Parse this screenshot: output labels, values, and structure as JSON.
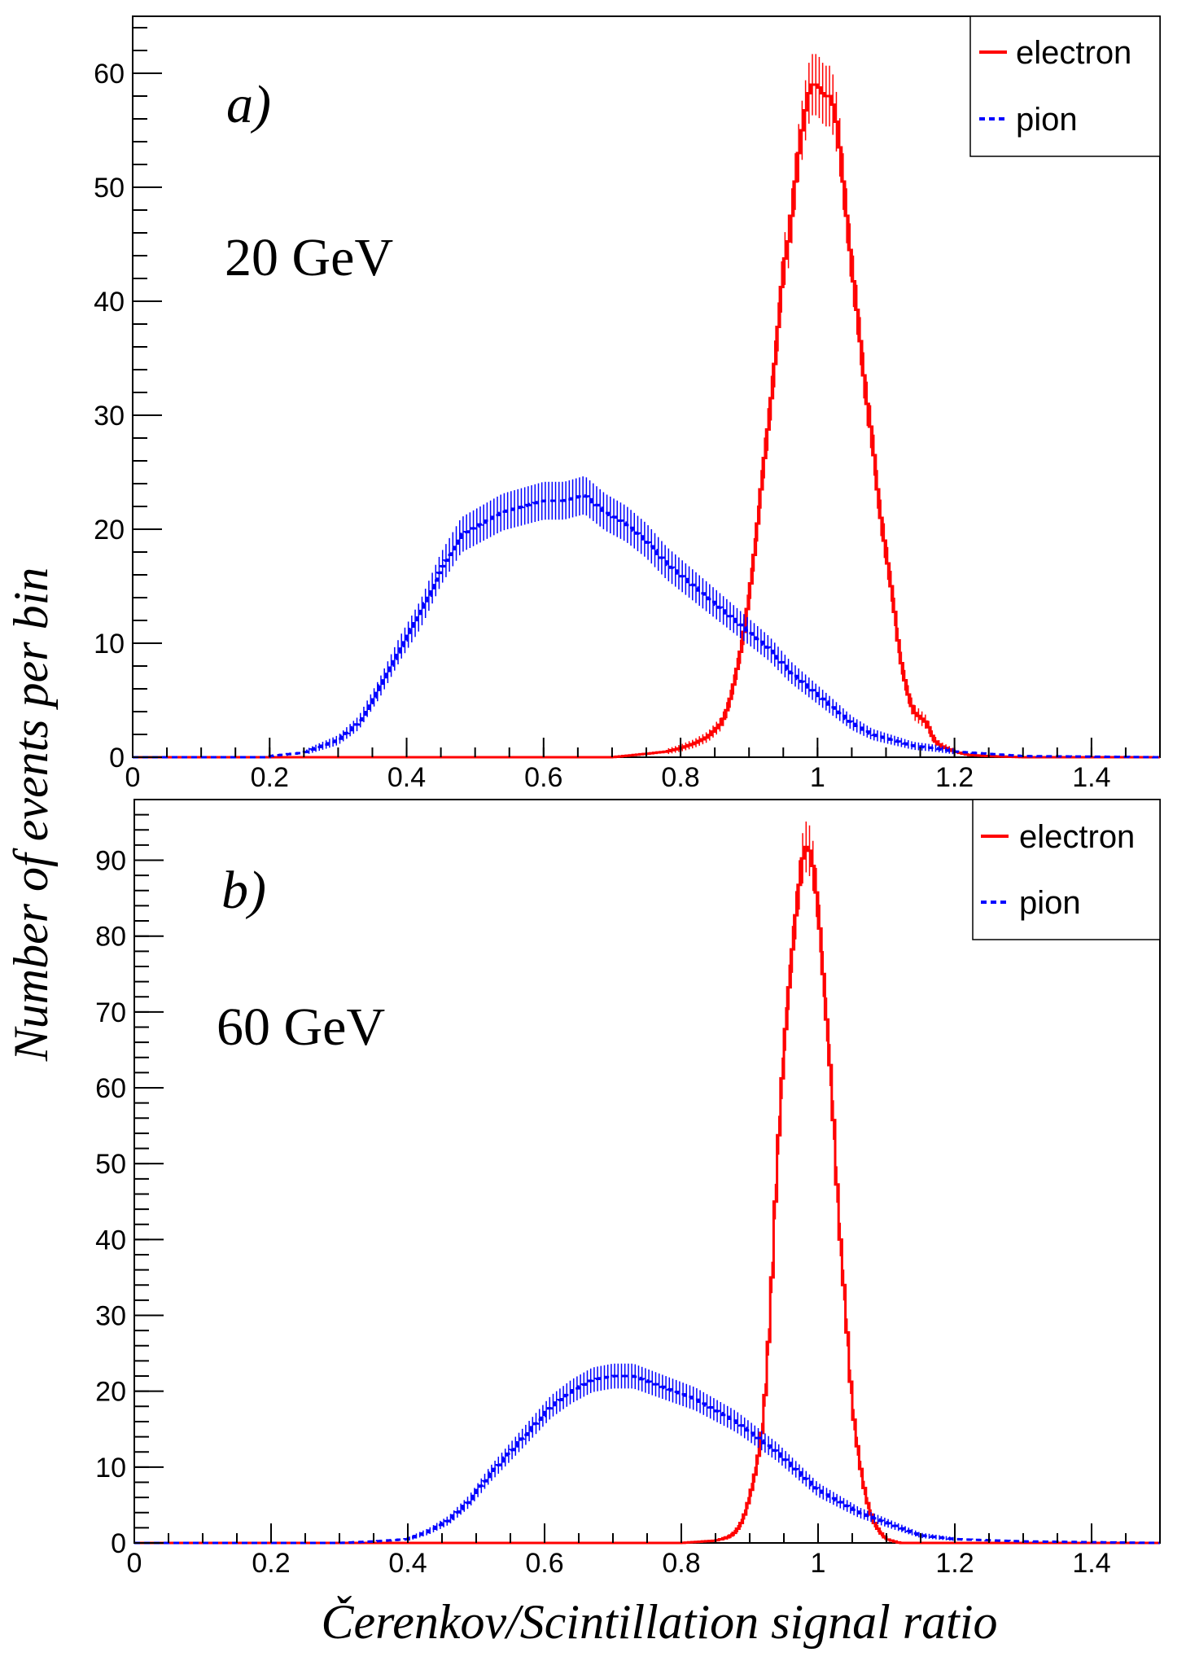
{
  "figure": {
    "ylabel": "Number of events per bin",
    "xlabel": "Čerenkov/Scintillation signal ratio"
  },
  "colors": {
    "electron": "#ff0000",
    "pion": "#0000ff",
    "axes": "#000000"
  },
  "chart_data": [
    {
      "type": "line",
      "panel_tag": "a)",
      "energy_label": "20 GeV",
      "xlim": [
        0,
        1.5
      ],
      "ylim": [
        0,
        65
      ],
      "x_ticks": [
        0,
        0.2,
        0.4,
        0.6,
        0.8,
        1,
        1.2,
        1.4
      ],
      "x_tick_labels": [
        "0",
        "0.2",
        "0.4",
        "0.6",
        "0.8",
        "1",
        "1.2",
        "1.4"
      ],
      "y_ticks": [
        0,
        10,
        20,
        30,
        40,
        50,
        60
      ],
      "y_tick_labels": [
        "0",
        "10",
        "20",
        "30",
        "40",
        "50",
        "60"
      ],
      "legend_position": "top-right",
      "series": [
        {
          "name": "electron",
          "color": "#ff0000",
          "style": "solid",
          "x": [
            0.7,
            0.75,
            0.78,
            0.8,
            0.82,
            0.84,
            0.86,
            0.87,
            0.88,
            0.89,
            0.9,
            0.91,
            0.92,
            0.93,
            0.94,
            0.95,
            0.96,
            0.97,
            0.98,
            0.99,
            1.0,
            1.01,
            1.02,
            1.03,
            1.04,
            1.05,
            1.06,
            1.07,
            1.08,
            1.09,
            1.1,
            1.11,
            1.12,
            1.13,
            1.14,
            1.15,
            1.16,
            1.17,
            1.18,
            1.2,
            1.22,
            1.25,
            1.3
          ],
          "y": [
            0,
            0.3,
            0.5,
            0.8,
            1.2,
            1.8,
            3,
            4.5,
            7,
            10,
            14,
            19,
            25,
            30,
            36,
            43,
            46,
            52,
            56,
            59,
            59,
            58,
            58,
            55,
            49,
            43,
            38,
            32,
            28,
            22,
            18,
            14,
            9,
            6,
            4,
            3.5,
            3,
            1.5,
            1,
            0.5,
            0.2,
            0.1,
            0
          ],
          "errors": true
        },
        {
          "name": "pion",
          "color": "#0000ff",
          "style": "dashed",
          "x": [
            0.2,
            0.25,
            0.3,
            0.33,
            0.36,
            0.39,
            0.42,
            0.45,
            0.48,
            0.51,
            0.54,
            0.57,
            0.6,
            0.63,
            0.66,
            0.69,
            0.72,
            0.75,
            0.78,
            0.81,
            0.84,
            0.87,
            0.9,
            0.93,
            0.96,
            0.99,
            1.02,
            1.05,
            1.08,
            1.11,
            1.14,
            1.17,
            1.2,
            1.25,
            1.3,
            1.4,
            1.5
          ],
          "y": [
            0.1,
            0.4,
            1.5,
            3,
            6,
            9.5,
            12.5,
            16.5,
            19.5,
            20.5,
            21.5,
            22,
            22.5,
            22.5,
            23,
            21.5,
            20.5,
            19,
            17,
            15.5,
            14,
            12.5,
            11,
            9.5,
            7.5,
            6,
            4.5,
            3,
            2,
            1.5,
            1,
            0.8,
            0.5,
            0.3,
            0.1,
            0.05,
            0
          ],
          "errors": true
        }
      ]
    },
    {
      "type": "line",
      "panel_tag": "b)",
      "energy_label": "60 GeV",
      "xlim": [
        0,
        1.5
      ],
      "ylim": [
        0,
        98
      ],
      "x_ticks": [
        0,
        0.2,
        0.4,
        0.6,
        0.8,
        1,
        1.2,
        1.4
      ],
      "x_tick_labels": [
        "0",
        "0.2",
        "0.4",
        "0.6",
        "0.8",
        "1",
        "1.2",
        "1.4"
      ],
      "y_ticks": [
        0,
        10,
        20,
        30,
        40,
        50,
        60,
        70,
        80,
        90
      ],
      "y_tick_labels": [
        "0",
        "10",
        "20",
        "30",
        "40",
        "50",
        "60",
        "70",
        "80",
        "90"
      ],
      "legend_position": "top-right",
      "series": [
        {
          "name": "electron",
          "color": "#ff0000",
          "style": "solid",
          "x": [
            0.8,
            0.85,
            0.87,
            0.88,
            0.89,
            0.9,
            0.91,
            0.92,
            0.93,
            0.94,
            0.95,
            0.96,
            0.97,
            0.98,
            0.99,
            1.0,
            1.01,
            1.02,
            1.03,
            1.04,
            1.05,
            1.06,
            1.07,
            1.08,
            1.09,
            1.1,
            1.12
          ],
          "y": [
            0,
            0.3,
            0.8,
            1.5,
            3,
            6,
            10,
            16,
            30,
            50,
            65,
            76,
            85,
            92,
            91,
            84,
            72,
            60,
            43,
            31,
            18,
            11,
            6,
            3,
            1.5,
            0.5,
            0
          ],
          "errors": true
        },
        {
          "name": "pion",
          "color": "#0000ff",
          "style": "dashed",
          "x": [
            0.3,
            0.35,
            0.4,
            0.43,
            0.46,
            0.49,
            0.52,
            0.55,
            0.58,
            0.61,
            0.64,
            0.67,
            0.7,
            0.73,
            0.76,
            0.79,
            0.82,
            0.85,
            0.88,
            0.91,
            0.94,
            0.97,
            1.0,
            1.03,
            1.06,
            1.09,
            1.12,
            1.15,
            1.2,
            1.3,
            1.5
          ],
          "y": [
            0,
            0.2,
            0.5,
            1.5,
            3,
            5.5,
            9,
            12,
            15,
            18,
            20,
            21.5,
            22,
            22,
            21,
            20,
            19,
            17.5,
            16,
            14,
            12,
            9.5,
            7,
            5.5,
            4,
            3,
            2,
            1,
            0.5,
            0.2,
            0
          ],
          "errors": true
        }
      ]
    }
  ]
}
